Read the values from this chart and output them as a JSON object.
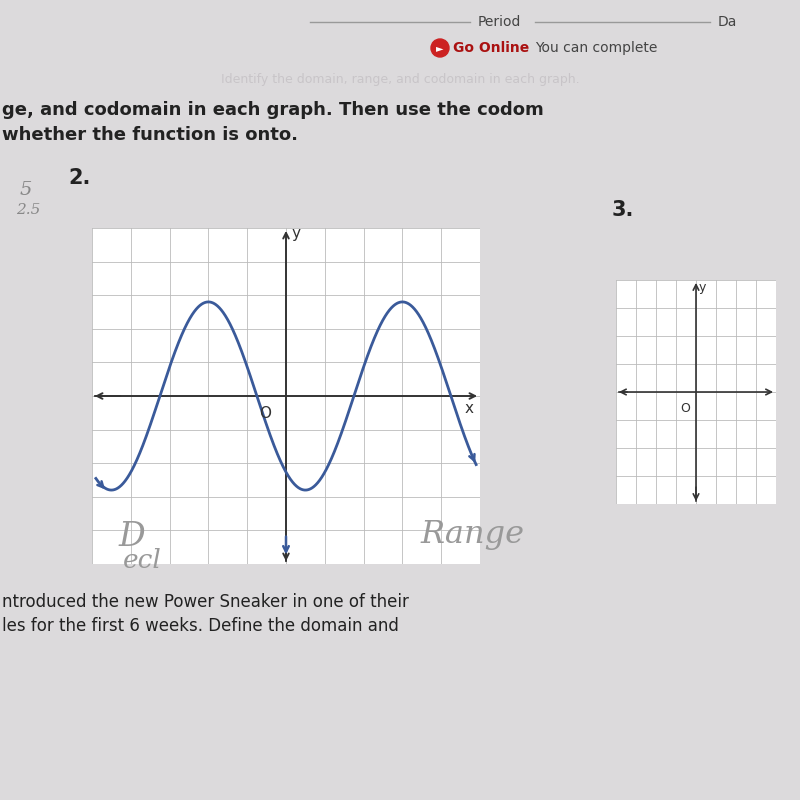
{
  "page_bg": "#dcdadc",
  "grid_color": "#bbbbbb",
  "axis_color": "#333333",
  "curve_color": "#3a5a9a",
  "curve_linewidth": 2.0,
  "label_O": "O",
  "label_x": "x",
  "label_y": "y",
  "go_online_color": "#cc2222",
  "go_online_text_color": "#aa1111",
  "text_color": "#222222",
  "faded_text_color": "#c0bcc0",
  "handwritten_color": "#888888",
  "period_line_color": "#999999"
}
